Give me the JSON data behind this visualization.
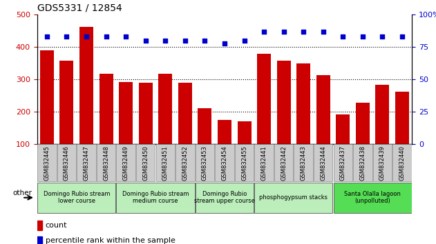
{
  "title": "GDS5331 / 12854",
  "categories": [
    "GSM832445",
    "GSM832446",
    "GSM832447",
    "GSM832448",
    "GSM832449",
    "GSM832450",
    "GSM832451",
    "GSM832452",
    "GSM832453",
    "GSM832454",
    "GSM832455",
    "GSM832441",
    "GSM832442",
    "GSM832443",
    "GSM832444",
    "GSM832437",
    "GSM832438",
    "GSM832439",
    "GSM832440"
  ],
  "bar_values": [
    390,
    358,
    462,
    317,
    292,
    290,
    318,
    290,
    210,
    175,
    170,
    380,
    357,
    350,
    312,
    192,
    228,
    283,
    262
  ],
  "percentile_values": [
    83,
    83,
    83,
    83,
    83,
    80,
    80,
    80,
    80,
    78,
    80,
    87,
    87,
    87,
    87,
    83,
    83,
    83,
    83
  ],
  "bar_color": "#cc0000",
  "percentile_color": "#0000cc",
  "ylim_left": [
    100,
    500
  ],
  "ylim_right": [
    0,
    100
  ],
  "yticks_left": [
    100,
    200,
    300,
    400,
    500
  ],
  "yticks_right": [
    0,
    25,
    50,
    75,
    100
  ],
  "grid_values": [
    200,
    300,
    400
  ],
  "group_spans": [
    {
      "label": "Domingo Rubio stream\nlower course",
      "start": 0,
      "end": 3,
      "color": "#bbeebb"
    },
    {
      "label": "Domingo Rubio stream\nmedium course",
      "start": 4,
      "end": 7,
      "color": "#bbeebb"
    },
    {
      "label": "Domingo Rubio\nstream upper course",
      "start": 8,
      "end": 10,
      "color": "#bbeebb"
    },
    {
      "label": "phosphogypsum stacks",
      "start": 11,
      "end": 14,
      "color": "#bbeebb"
    },
    {
      "label": "Santa Olalla lagoon\n(unpolluted)",
      "start": 15,
      "end": 18,
      "color": "#55dd55"
    }
  ],
  "legend_count_label": "count",
  "legend_percentile_label": "percentile rank within the sample",
  "other_label": "other",
  "gray_tick_bg": "#cccccc",
  "tick_font_size": 6,
  "bar_font_size": 8,
  "title_font_size": 10,
  "group_font_size": 6
}
